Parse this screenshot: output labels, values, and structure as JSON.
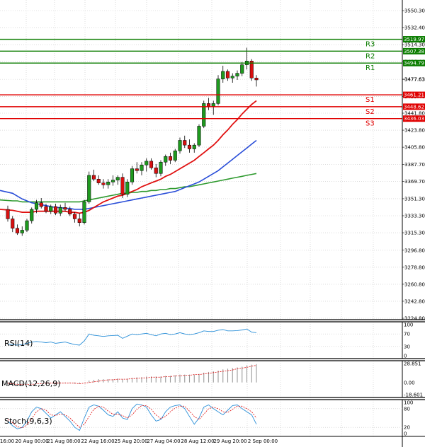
{
  "chart_data": {
    "type": "candlestick",
    "price_axis": {
      "ticks": [
        "3550.30",
        "3532.40",
        "3514.30",
        "3496.40",
        "3477.63",
        "3459.40",
        "3441.80",
        "3423.80",
        "3405.80",
        "3387.70",
        "3369.70",
        "3351.30",
        "3333.30",
        "3315.30",
        "3296.80",
        "3278.80",
        "3260.80",
        "3242.80",
        "3224.80"
      ],
      "ylim": [
        3224.8,
        3550.3
      ]
    },
    "current_price": "3477.63",
    "levels": [
      {
        "name": "R3",
        "value": 3519.97,
        "tag": "3519.97",
        "color": "#0b7d00"
      },
      {
        "name": "R2",
        "value": 3507.38,
        "tag": "3507.38",
        "color": "#0b7d00"
      },
      {
        "name": "R1",
        "value": 3494.79,
        "tag": "3494.79",
        "color": "#0b7d00"
      },
      {
        "name": "S1",
        "value": 3461.21,
        "tag": "3461.21",
        "color": "#e00000"
      },
      {
        "name": "S2",
        "value": 3448.62,
        "tag": "3448.62",
        "color": "#e00000"
      },
      {
        "name": "S3",
        "value": 3436.03,
        "tag": "3436.03",
        "color": "#e00000"
      }
    ],
    "x_labels": [
      "16:00",
      "20 Aug 00:00",
      "21 Aug 08:00",
      "22 Aug 16:00",
      "25 Aug 20:00",
      "27 Aug 04:00",
      "28 Aug 12:00",
      "29 Aug 20:00",
      "2 Sep 00:00"
    ],
    "candles": [
      [
        3340,
        3344,
        3327,
        3330
      ],
      [
        3330,
        3333,
        3316,
        3320
      ],
      [
        3320,
        3324,
        3313,
        3315
      ],
      [
        3315,
        3322,
        3312,
        3318
      ],
      [
        3318,
        3330,
        3316,
        3328
      ],
      [
        3328,
        3342,
        3325,
        3340
      ],
      [
        3340,
        3350,
        3336,
        3347
      ],
      [
        3347,
        3352,
        3341,
        3343
      ],
      [
        3343,
        3346,
        3336,
        3338
      ],
      [
        3338,
        3345,
        3335,
        3343
      ],
      [
        3343,
        3346,
        3334,
        3336
      ],
      [
        3336,
        3345,
        3333,
        3342
      ],
      [
        3342,
        3347,
        3338,
        3340
      ],
      [
        3340,
        3343,
        3333,
        3335
      ],
      [
        3335,
        3337,
        3326,
        3330
      ],
      [
        3330,
        3336,
        3322,
        3326
      ],
      [
        3326,
        3350,
        3324,
        3348
      ],
      [
        3348,
        3380,
        3346,
        3376
      ],
      [
        3376,
        3382,
        3370,
        3372
      ],
      [
        3372,
        3376,
        3366,
        3368
      ],
      [
        3368,
        3372,
        3362,
        3366
      ],
      [
        3366,
        3372,
        3362,
        3369
      ],
      [
        3369,
        3376,
        3365,
        3371
      ],
      [
        3371,
        3376,
        3366,
        3374
      ],
      [
        3374,
        3378,
        3352,
        3356
      ],
      [
        3356,
        3372,
        3353,
        3369
      ],
      [
        3369,
        3386,
        3366,
        3383
      ],
      [
        3383,
        3390,
        3378,
        3381
      ],
      [
        3381,
        3390,
        3376,
        3387
      ],
      [
        3387,
        3394,
        3380,
        3391
      ],
      [
        3391,
        3394,
        3382,
        3384
      ],
      [
        3384,
        3388,
        3374,
        3378
      ],
      [
        3378,
        3392,
        3375,
        3390
      ],
      [
        3390,
        3398,
        3386,
        3396
      ],
      [
        3396,
        3400,
        3388,
        3392
      ],
      [
        3392,
        3404,
        3390,
        3402
      ],
      [
        3402,
        3416,
        3399,
        3413
      ],
      [
        3413,
        3418,
        3405,
        3408
      ],
      [
        3408,
        3414,
        3400,
        3404
      ],
      [
        3404,
        3410,
        3400,
        3408
      ],
      [
        3408,
        3430,
        3406,
        3428
      ],
      [
        3428,
        3455,
        3426,
        3452
      ],
      [
        3452,
        3458,
        3445,
        3449
      ],
      [
        3449,
        3455,
        3440,
        3452
      ],
      [
        3452,
        3482,
        3450,
        3478
      ],
      [
        3478,
        3492,
        3474,
        3486
      ],
      [
        3486,
        3488,
        3476,
        3479
      ],
      [
        3479,
        3484,
        3474,
        3481
      ],
      [
        3481,
        3487,
        3477,
        3484
      ],
      [
        3484,
        3496,
        3481,
        3493
      ],
      [
        3493,
        3511,
        3488,
        3497
      ],
      [
        3497,
        3499,
        3476,
        3479
      ],
      [
        3479,
        3482,
        3470,
        3477
      ]
    ],
    "ma_red": [
      3340,
      3339,
      3338,
      3337,
      3337,
      3337,
      3338,
      3338,
      3338,
      3338,
      3338,
      3338,
      3338,
      3337,
      3337,
      3336,
      3337,
      3339,
      3342,
      3345,
      3348,
      3350,
      3352,
      3354,
      3355,
      3357,
      3359,
      3361,
      3364,
      3366,
      3368,
      3370,
      3372,
      3375,
      3377,
      3380,
      3383,
      3386,
      3389,
      3392,
      3396,
      3400,
      3404,
      3408,
      3413,
      3419,
      3424,
      3430,
      3435,
      3441,
      3446,
      3451,
      3455
    ],
    "ma_blue": [
      3360,
      3357,
      3354,
      3351,
      3349,
      3347,
      3346,
      3345,
      3344,
      3343,
      3342,
      3342,
      3341,
      3341,
      3340,
      3340,
      3340,
      3341,
      3342,
      3343,
      3344,
      3345,
      3346,
      3347,
      3348,
      3349,
      3350,
      3351,
      3352,
      3353,
      3354,
      3355,
      3356,
      3357,
      3358,
      3359,
      3361,
      3363,
      3365,
      3367,
      3369,
      3372,
      3375,
      3378,
      3381,
      3385,
      3389,
      3393,
      3397,
      3401,
      3405,
      3409,
      3413
    ],
    "ma_green": [
      3350,
      3349,
      3349,
      3348,
      3348,
      3348,
      3348,
      3348,
      3348,
      3348,
      3348,
      3348,
      3348,
      3348,
      3348,
      3348,
      3349,
      3350,
      3351,
      3352,
      3353,
      3354,
      3355,
      3356,
      3357,
      3357,
      3358,
      3358,
      3359,
      3359,
      3360,
      3360,
      3361,
      3361,
      3362,
      3362,
      3363,
      3364,
      3364,
      3365,
      3366,
      3367,
      3368,
      3369,
      3370,
      3371,
      3372,
      3373,
      3374,
      3375,
      3376,
      3377,
      3378
    ],
    "rsi": {
      "label": "RSI(14)",
      "ticks": [
        "100",
        "70",
        "30",
        "0"
      ],
      "values": [
        38,
        36,
        34,
        36,
        40,
        44,
        46,
        44,
        42,
        44,
        40,
        42,
        44,
        40,
        36,
        34,
        48,
        70,
        66,
        64,
        62,
        64,
        65,
        66,
        56,
        63,
        70,
        68,
        70,
        72,
        68,
        64,
        70,
        72,
        68,
        70,
        74,
        70,
        68,
        70,
        74,
        80,
        78,
        78,
        82,
        84,
        80,
        80,
        81,
        83,
        86,
        76,
        74
      ]
    },
    "macd": {
      "label": "MACD(12,26,9)",
      "ticks": [
        "28.851",
        "0.00",
        "-18.601"
      ],
      "hist": [
        -2,
        -3,
        -4,
        -4,
        -3,
        -2,
        -1,
        -1,
        -1,
        0,
        -1,
        -1,
        -1,
        -1,
        -2,
        -2,
        0,
        3,
        4,
        5,
        5,
        5,
        5,
        6,
        5,
        6,
        7,
        8,
        8,
        9,
        9,
        9,
        9,
        10,
        10,
        11,
        12,
        12,
        12,
        12,
        13,
        15,
        16,
        17,
        18,
        20,
        21,
        22,
        23,
        24,
        26,
        27,
        28
      ],
      "signal": [
        -1,
        -2,
        -3,
        -3,
        -3,
        -3,
        -2,
        -2,
        -1,
        -1,
        -1,
        -1,
        -1,
        -1,
        -1,
        -2,
        -1,
        0,
        1,
        2,
        3,
        4,
        4,
        5,
        5,
        5,
        6,
        6,
        7,
        7,
        8,
        8,
        8,
        9,
        9,
        10,
        10,
        11,
        11,
        12,
        12,
        13,
        14,
        15,
        16,
        17,
        18,
        19,
        21,
        22,
        23,
        25,
        26
      ]
    },
    "stoch": {
      "label": "Stoch(9,6,3)",
      "ticks": [
        "100",
        "80",
        "20",
        "0"
      ],
      "k": [
        40,
        25,
        15,
        20,
        40,
        70,
        85,
        80,
        65,
        50,
        60,
        70,
        55,
        40,
        20,
        10,
        50,
        85,
        92,
        88,
        75,
        60,
        55,
        70,
        50,
        45,
        80,
        95,
        92,
        85,
        60,
        40,
        45,
        70,
        85,
        90,
        92,
        80,
        55,
        30,
        50,
        85,
        92,
        80,
        70,
        60,
        75,
        90,
        92,
        80,
        70,
        60,
        30
      ],
      "d": [
        45,
        35,
        22,
        18,
        28,
        48,
        70,
        80,
        75,
        60,
        58,
        63,
        60,
        50,
        35,
        20,
        30,
        55,
        78,
        88,
        85,
        72,
        62,
        62,
        58,
        50,
        60,
        78,
        90,
        90,
        78,
        60,
        48,
        55,
        70,
        82,
        88,
        88,
        72,
        55,
        45,
        62,
        80,
        85,
        80,
        70,
        68,
        78,
        88,
        88,
        80,
        70,
        50
      ]
    }
  }
}
